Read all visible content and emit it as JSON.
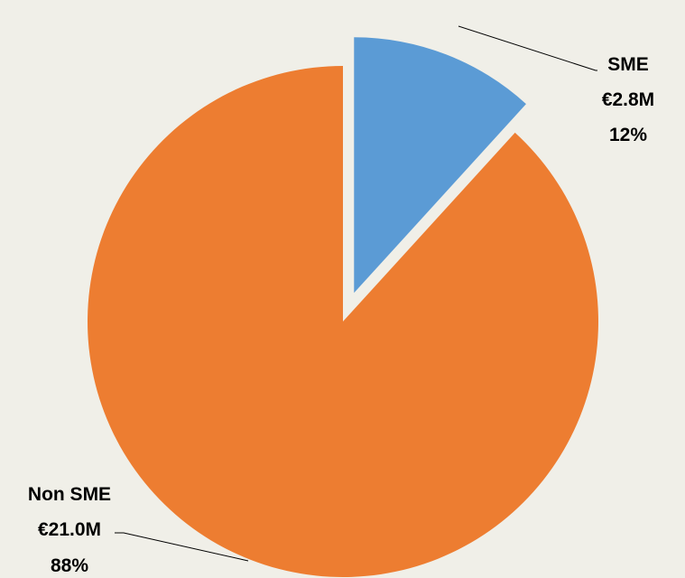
{
  "chart_data": {
    "type": "pie",
    "title": "",
    "currency": "€",
    "slices": [
      {
        "name": "SME",
        "value": 2.8,
        "value_label": "€2.8M",
        "percent_label": "12%",
        "color": "#5b9bd5",
        "exploded": true
      },
      {
        "name": "Non SME",
        "value": 21.0,
        "value_label": "€21.0M",
        "percent_label": "88%",
        "color": "#ed7d31",
        "exploded": false
      }
    ],
    "legend": "none",
    "background": "#f0efe8"
  }
}
